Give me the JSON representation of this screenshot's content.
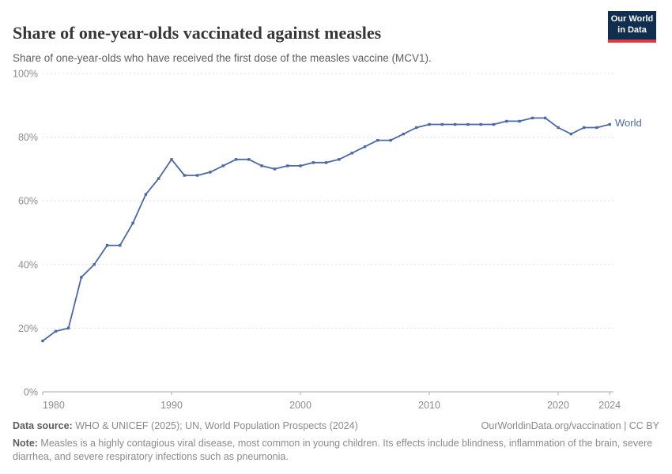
{
  "header": {
    "title": "Share of one-year-olds vaccinated against measles",
    "subtitle": "Share of one-year-olds who have received the first dose of the measles vaccine (MCV1)."
  },
  "logo": {
    "line1": "Our World",
    "line2": "in Data"
  },
  "chart_data": {
    "type": "line",
    "title": "Share of one-year-olds vaccinated against measles",
    "xlabel": "",
    "ylabel": "",
    "ylim": [
      0,
      100
    ],
    "grid": "horizontal-dashed",
    "legend_position": "end-of-line-label",
    "x": [
      1980,
      1981,
      1982,
      1983,
      1984,
      1985,
      1986,
      1987,
      1988,
      1989,
      1990,
      1991,
      1992,
      1993,
      1994,
      1995,
      1996,
      1997,
      1998,
      1999,
      2000,
      2001,
      2002,
      2003,
      2004,
      2005,
      2006,
      2007,
      2008,
      2009,
      2010,
      2011,
      2012,
      2013,
      2014,
      2015,
      2016,
      2017,
      2018,
      2019,
      2020,
      2021,
      2022,
      2023,
      2024
    ],
    "series": [
      {
        "name": "World",
        "color": "#4b69a5",
        "values": [
          16,
          19,
          20,
          36,
          40,
          46,
          46,
          53,
          62,
          67,
          73,
          68,
          68,
          69,
          71,
          73,
          73,
          71,
          70,
          71,
          71,
          72,
          72,
          73,
          75,
          77,
          79,
          79,
          81,
          83,
          84,
          84,
          84,
          84,
          84,
          84,
          85,
          85,
          86,
          86,
          83,
          81,
          83,
          83,
          84
        ]
      }
    ],
    "yticks": [
      {
        "value": 0,
        "label": "0%"
      },
      {
        "value": 20,
        "label": "20%"
      },
      {
        "value": 40,
        "label": "40%"
      },
      {
        "value": 60,
        "label": "60%"
      },
      {
        "value": 80,
        "label": "80%"
      },
      {
        "value": 100,
        "label": "100%"
      }
    ],
    "xticks": [
      {
        "value": 1980,
        "label": "1980",
        "anchor": "start"
      },
      {
        "value": 1990,
        "label": "1990",
        "anchor": "middle"
      },
      {
        "value": 2000,
        "label": "2000",
        "anchor": "middle"
      },
      {
        "value": 2010,
        "label": "2010",
        "anchor": "middle"
      },
      {
        "value": 2020,
        "label": "2020",
        "anchor": "middle"
      },
      {
        "value": 2024,
        "label": "2024",
        "anchor": "middle"
      }
    ]
  },
  "colors": {
    "line": "#4b69a5",
    "grid": "#e0e0e0",
    "axis": "#a8a8a8",
    "tick_text": "#8c8c8c",
    "logo_bg": "#102e50",
    "logo_red": "#e0393f"
  },
  "footer": {
    "source_label": "Data source:",
    "source_text": " WHO & UNICEF (2025); UN, World Population Prospects (2024)",
    "rights": "OurWorldinData.org/vaccination | CC BY",
    "note_label": "Note:",
    "note_text": " Measles is a highly contagious viral disease, most common in young children. Its effects include blindness, inflammation of the brain, severe diarrhea, and severe respiratory infections such as pneumonia."
  }
}
